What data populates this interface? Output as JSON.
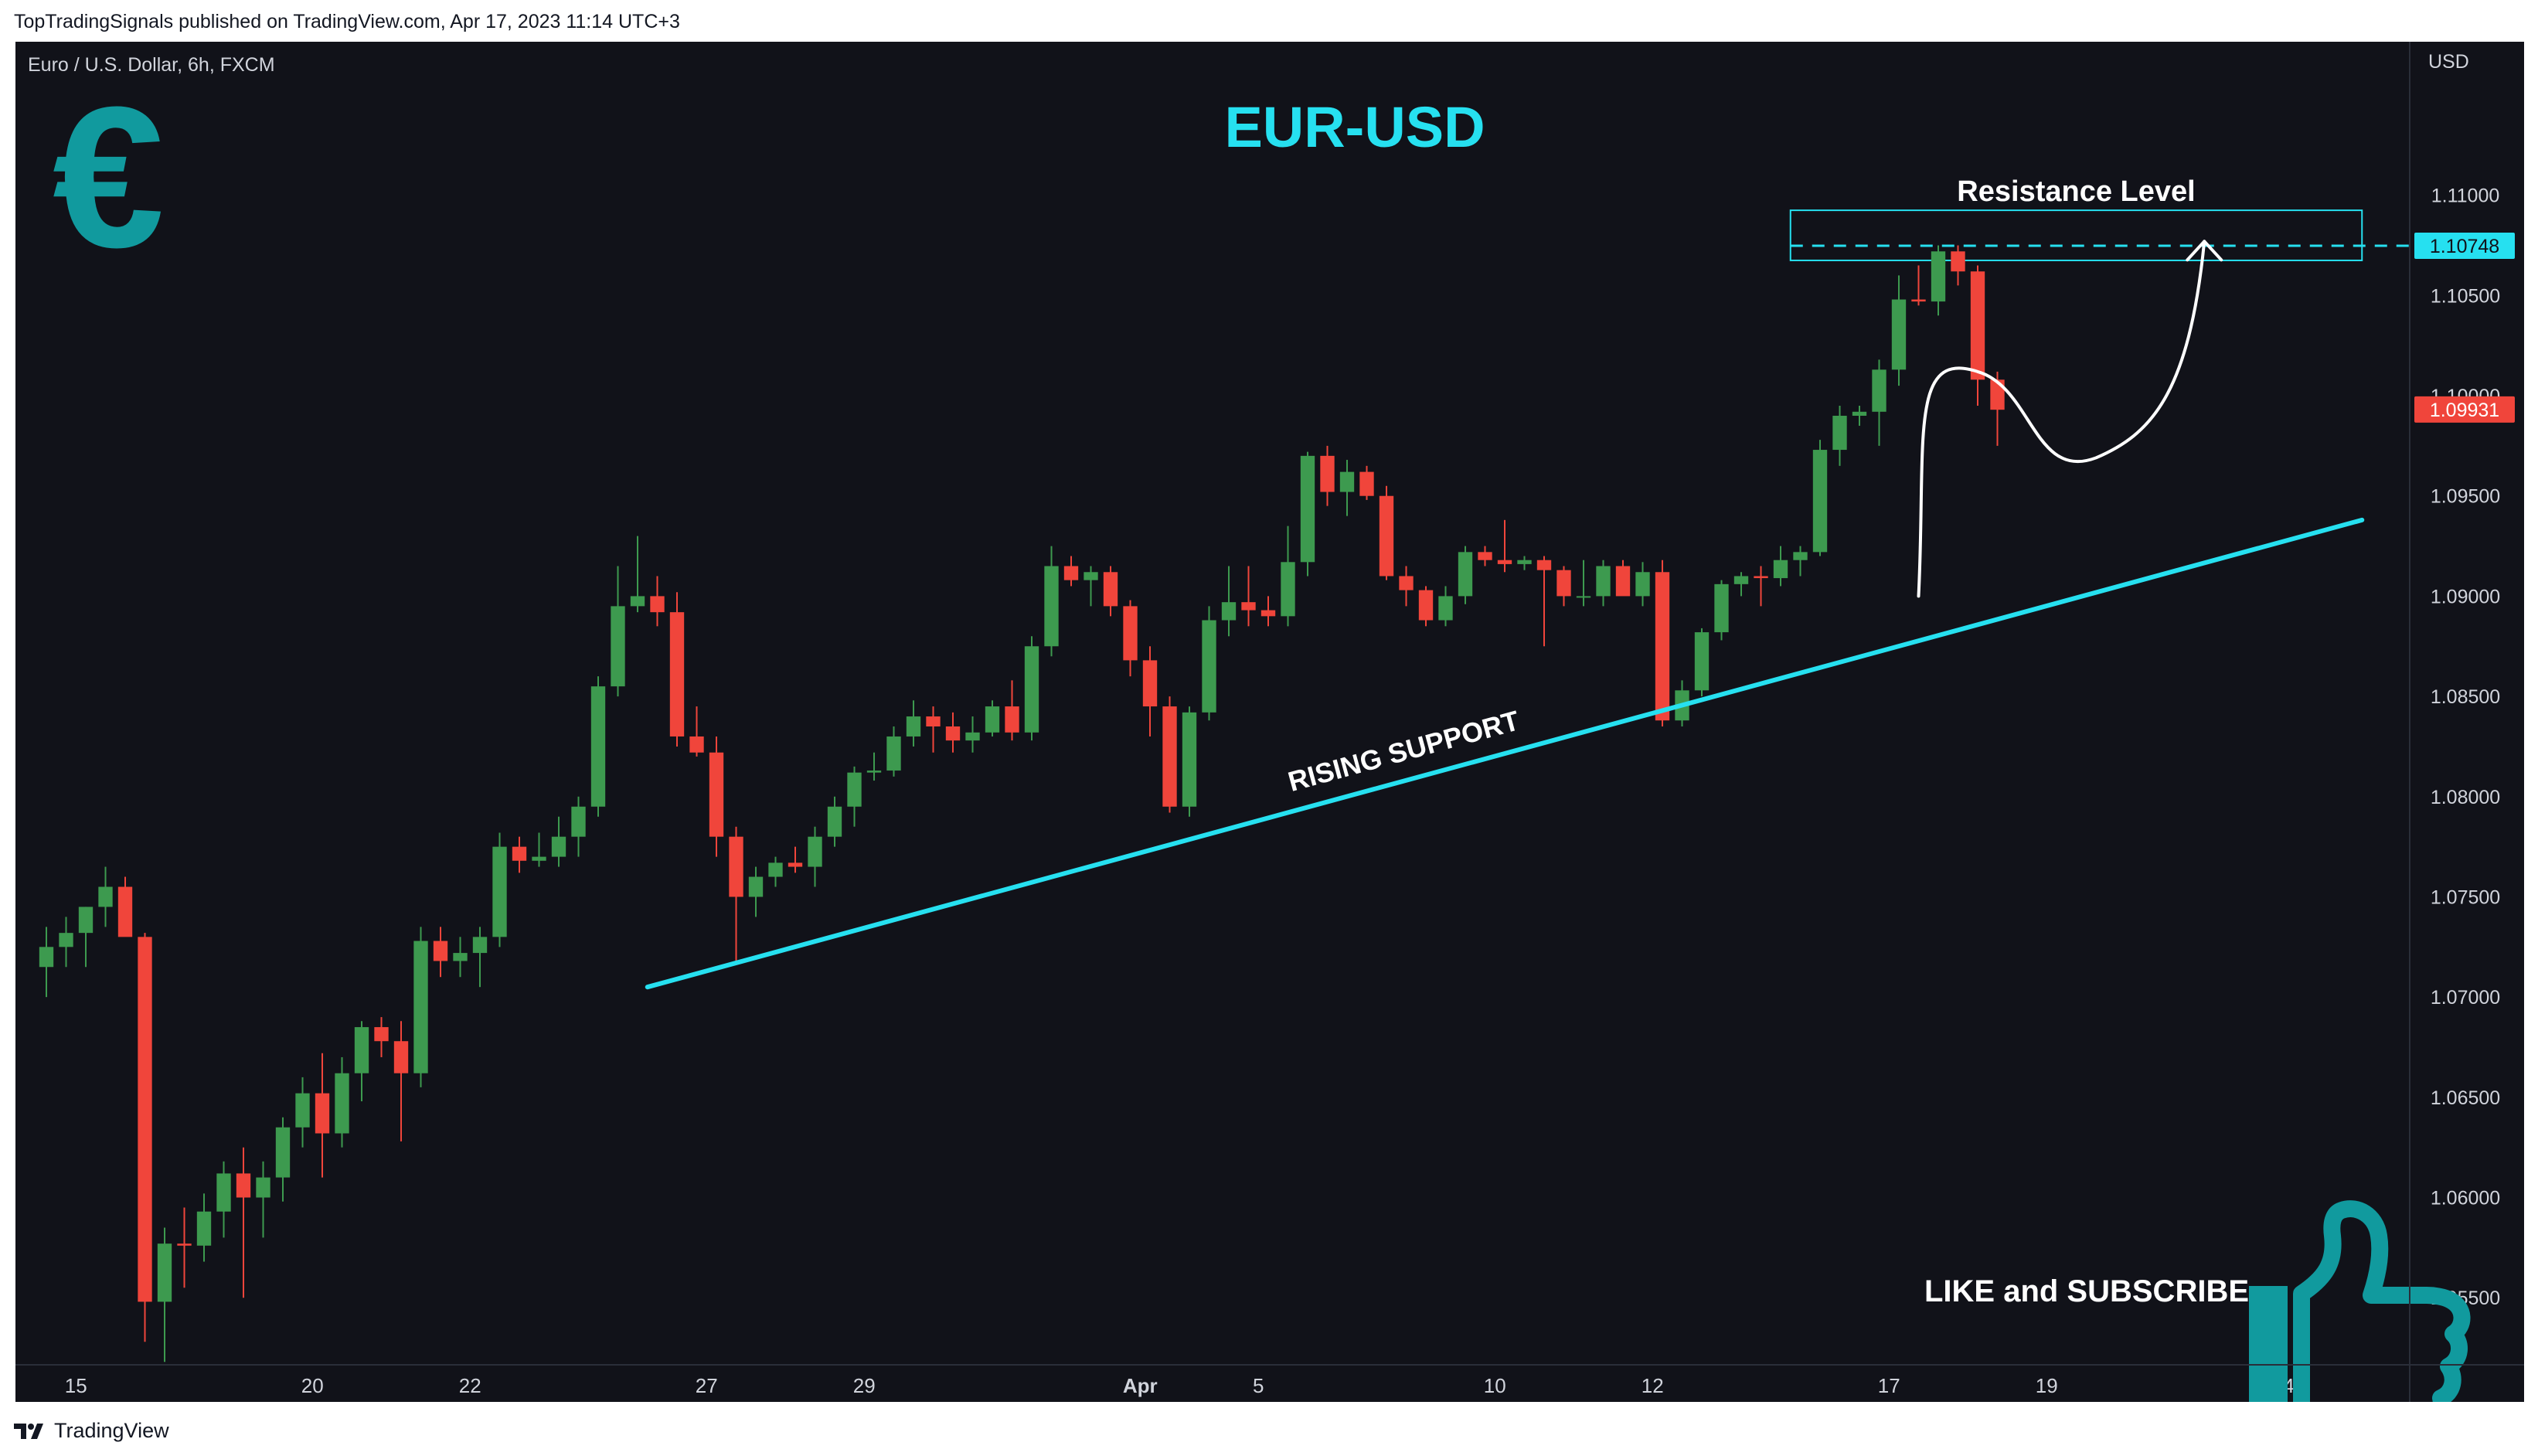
{
  "header": {
    "published_line": "TopTradingSignals published on TradingView.com, Apr 17, 2023 11:14 UTC+3"
  },
  "chart_header": {
    "symbol_line": "Euro / U.S. Dollar, 6h, FXCM",
    "currency": "USD"
  },
  "annotations": {
    "title": "EUR-USD",
    "resistance_label": "Resistance Level",
    "support_label": "RISING SUPPORT",
    "cta": "LIKE and SUBSCRIBE",
    "euro_symbol": "€"
  },
  "footer": {
    "brand": "TradingView"
  },
  "colors": {
    "background": "#111219",
    "up": "#3d9a4f",
    "down": "#f0453b",
    "accent": "#26e0f0",
    "teal_icon": "#119a9e",
    "axis_text": "#d1d4dc"
  },
  "icons": [
    "euro-icon",
    "thumbs-up-icon",
    "tradingview-logo-icon"
  ],
  "price_tags": [
    {
      "value": "1.10748",
      "color": "#26e0f0",
      "text_color": "#111219"
    },
    {
      "value": "1.09931",
      "color": "#f0453b",
      "text_color": "#ffffff"
    }
  ],
  "chart_data": {
    "type": "candlestick",
    "interval": "6h",
    "ylim": [
      1.0515,
      1.1155
    ],
    "yticks": [
      "1.05500",
      "1.06000",
      "1.06500",
      "1.07000",
      "1.07500",
      "1.08000",
      "1.08500",
      "1.09000",
      "1.09500",
      "1.10000",
      "1.10500",
      "1.11000"
    ],
    "xticks": [
      {
        "label": "15",
        "bar": 1.5
      },
      {
        "label": "20",
        "bar": 13.5
      },
      {
        "label": "22",
        "bar": 21.5
      },
      {
        "label": "27",
        "bar": 33.5
      },
      {
        "label": "29",
        "bar": 41.5
      },
      {
        "label": "Apr",
        "bar": 55.5,
        "bold": true
      },
      {
        "label": "5",
        "bar": 61.5
      },
      {
        "label": "10",
        "bar": 73.5
      },
      {
        "label": "12",
        "bar": 81.5
      },
      {
        "label": "17",
        "bar": 93.5
      },
      {
        "label": "19",
        "bar": 101.5
      },
      {
        "label": "24",
        "bar": 113.5
      }
    ],
    "candles": [
      [
        1.0715,
        1.0735,
        1.07,
        1.0725
      ],
      [
        1.0725,
        1.074,
        1.0715,
        1.0732
      ],
      [
        1.0732,
        1.0745,
        1.0715,
        1.0745
      ],
      [
        1.0745,
        1.0765,
        1.0735,
        1.0755
      ],
      [
        1.0755,
        1.076,
        1.0735,
        1.073
      ],
      [
        1.073,
        1.0732,
        1.0528,
        1.0548
      ],
      [
        1.0548,
        1.0585,
        1.0518,
        1.0577
      ],
      [
        1.0577,
        1.0595,
        1.0555,
        1.0576
      ],
      [
        1.0576,
        1.0602,
        1.0568,
        1.0593
      ],
      [
        1.0593,
        1.0618,
        1.058,
        1.0612
      ],
      [
        1.0612,
        1.0625,
        1.055,
        1.06
      ],
      [
        1.06,
        1.0618,
        1.058,
        1.061
      ],
      [
        1.061,
        1.064,
        1.0598,
        1.0635
      ],
      [
        1.0635,
        1.066,
        1.0625,
        1.0652
      ],
      [
        1.0652,
        1.0672,
        1.061,
        1.0632
      ],
      [
        1.0632,
        1.067,
        1.0625,
        1.0662
      ],
      [
        1.0662,
        1.0688,
        1.0648,
        1.0685
      ],
      [
        1.0685,
        1.069,
        1.067,
        1.0678
      ],
      [
        1.0678,
        1.0688,
        1.0628,
        1.0662
      ],
      [
        1.0662,
        1.0735,
        1.0655,
        1.0728
      ],
      [
        1.0728,
        1.0735,
        1.071,
        1.0718
      ],
      [
        1.0718,
        1.073,
        1.071,
        1.0722
      ],
      [
        1.0722,
        1.0735,
        1.0705,
        1.073
      ],
      [
        1.073,
        1.0782,
        1.0725,
        1.0775
      ],
      [
        1.0775,
        1.078,
        1.0762,
        1.0768
      ],
      [
        1.0768,
        1.0782,
        1.0765,
        1.077
      ],
      [
        1.077,
        1.079,
        1.0765,
        1.078
      ],
      [
        1.078,
        1.08,
        1.077,
        1.0795
      ],
      [
        1.0795,
        1.086,
        1.079,
        1.0855
      ],
      [
        1.0855,
        1.0915,
        1.085,
        1.0895
      ],
      [
        1.0895,
        1.093,
        1.0892,
        1.09
      ],
      [
        1.09,
        1.091,
        1.0885,
        1.0892
      ],
      [
        1.0892,
        1.0902,
        1.0825,
        1.083
      ],
      [
        1.083,
        1.0845,
        1.082,
        1.0822
      ],
      [
        1.0822,
        1.083,
        1.077,
        1.078
      ],
      [
        1.078,
        1.0785,
        1.0718,
        1.075
      ],
      [
        1.075,
        1.0765,
        1.074,
        1.076
      ],
      [
        1.076,
        1.077,
        1.0755,
        1.0767
      ],
      [
        1.0767,
        1.0775,
        1.0762,
        1.0765
      ],
      [
        1.0765,
        1.0785,
        1.0755,
        1.078
      ],
      [
        1.078,
        1.08,
        1.0775,
        1.0795
      ],
      [
        1.0795,
        1.0815,
        1.0785,
        1.0812
      ],
      [
        1.0812,
        1.0822,
        1.0808,
        1.0813
      ],
      [
        1.0813,
        1.0835,
        1.081,
        1.083
      ],
      [
        1.083,
        1.0848,
        1.0825,
        1.084
      ],
      [
        1.084,
        1.0845,
        1.0822,
        1.0835
      ],
      [
        1.0835,
        1.0842,
        1.0822,
        1.0828
      ],
      [
        1.0828,
        1.084,
        1.0822,
        1.0832
      ],
      [
        1.0832,
        1.0848,
        1.083,
        1.0845
      ],
      [
        1.0845,
        1.0858,
        1.0828,
        1.0832
      ],
      [
        1.0832,
        1.088,
        1.0828,
        1.0875
      ],
      [
        1.0875,
        1.0925,
        1.087,
        1.0915
      ],
      [
        1.0915,
        1.092,
        1.0905,
        1.0908
      ],
      [
        1.0908,
        1.0915,
        1.0895,
        1.0912
      ],
      [
        1.0912,
        1.0915,
        1.089,
        1.0895
      ],
      [
        1.0895,
        1.0898,
        1.086,
        1.0868
      ],
      [
        1.0868,
        1.0875,
        1.083,
        1.0845
      ],
      [
        1.0845,
        1.085,
        1.0792,
        1.0795
      ],
      [
        1.0795,
        1.0845,
        1.079,
        1.0842
      ],
      [
        1.0842,
        1.0895,
        1.0838,
        1.0888
      ],
      [
        1.0888,
        1.0915,
        1.088,
        1.0897
      ],
      [
        1.0897,
        1.0915,
        1.0885,
        1.0893
      ],
      [
        1.0893,
        1.09,
        1.0885,
        1.089
      ],
      [
        1.089,
        1.0935,
        1.0885,
        1.0917
      ],
      [
        1.0917,
        1.0972,
        1.091,
        1.097
      ],
      [
        1.097,
        1.0975,
        1.0945,
        1.0952
      ],
      [
        1.0952,
        1.0968,
        1.094,
        1.0962
      ],
      [
        1.0962,
        1.0965,
        1.0948,
        1.095
      ],
      [
        1.095,
        1.0955,
        1.0908,
        1.091
      ],
      [
        1.091,
        1.0915,
        1.0895,
        1.0903
      ],
      [
        1.0903,
        1.0905,
        1.0885,
        1.0888
      ],
      [
        1.0888,
        1.0905,
        1.0885,
        1.09
      ],
      [
        1.09,
        1.0925,
        1.0896,
        1.0922
      ],
      [
        1.0922,
        1.0925,
        1.0915,
        1.0918
      ],
      [
        1.0918,
        1.0938,
        1.0912,
        1.0916
      ],
      [
        1.0916,
        1.092,
        1.0913,
        1.0918
      ],
      [
        1.0918,
        1.092,
        1.0875,
        1.0913
      ],
      [
        1.0913,
        1.0915,
        1.0895,
        1.09
      ],
      [
        1.09,
        1.0918,
        1.0895,
        1.09
      ],
      [
        1.09,
        1.0918,
        1.0895,
        1.0915
      ],
      [
        1.0915,
        1.0918,
        1.0902,
        1.09
      ],
      [
        1.09,
        1.0917,
        1.0895,
        1.0912
      ],
      [
        1.0912,
        1.0918,
        1.0835,
        1.0838
      ],
      [
        1.0838,
        1.0858,
        1.0835,
        1.0853
      ],
      [
        1.0853,
        1.0884,
        1.085,
        1.0882
      ],
      [
        1.0882,
        1.0908,
        1.0878,
        1.0906
      ],
      [
        1.0906,
        1.0912,
        1.09,
        1.091
      ],
      [
        1.091,
        1.0915,
        1.0895,
        1.0909
      ],
      [
        1.0909,
        1.0925,
        1.0905,
        1.0918
      ],
      [
        1.0918,
        1.0925,
        1.091,
        1.0922
      ],
      [
        1.0922,
        1.0978,
        1.092,
        1.0973
      ],
      [
        1.0973,
        1.0995,
        1.0965,
        1.099
      ],
      [
        1.099,
        1.0995,
        1.0985,
        1.0992
      ],
      [
        1.0992,
        1.1018,
        1.0975,
        1.1013
      ],
      [
        1.1013,
        1.106,
        1.1005,
        1.1048
      ],
      [
        1.1048,
        1.1065,
        1.1045,
        1.1047
      ],
      [
        1.1047,
        1.1075,
        1.104,
        1.1072
      ],
      [
        1.1072,
        1.1075,
        1.1055,
        1.1062
      ],
      [
        1.1062,
        1.1065,
        1.0995,
        1.1008
      ],
      [
        1.1008,
        1.1012,
        1.0975,
        1.0993
      ]
    ],
    "resistance_level": 1.10748,
    "last_price": 1.09931,
    "support_line": [
      {
        "bar": 30.5,
        "price": 1.0705
      },
      {
        "bar": 117.5,
        "price": 1.0938
      }
    ],
    "resistance_zone": {
      "bar_start": 88.5,
      "bar_end": 117.5,
      "top": 1.10925,
      "bottom": 1.10675
    },
    "projection_path": [
      {
        "bar": 95.0,
        "price": 1.09
      },
      {
        "bar": 98.0,
        "price": 1.1012
      },
      {
        "bar": 101.0,
        "price": 1.0988
      },
      {
        "bar": 104.0,
        "price": 1.0969
      },
      {
        "bar": 107.0,
        "price": 1.102
      },
      {
        "bar": 109.5,
        "price": 1.1077
      }
    ]
  }
}
